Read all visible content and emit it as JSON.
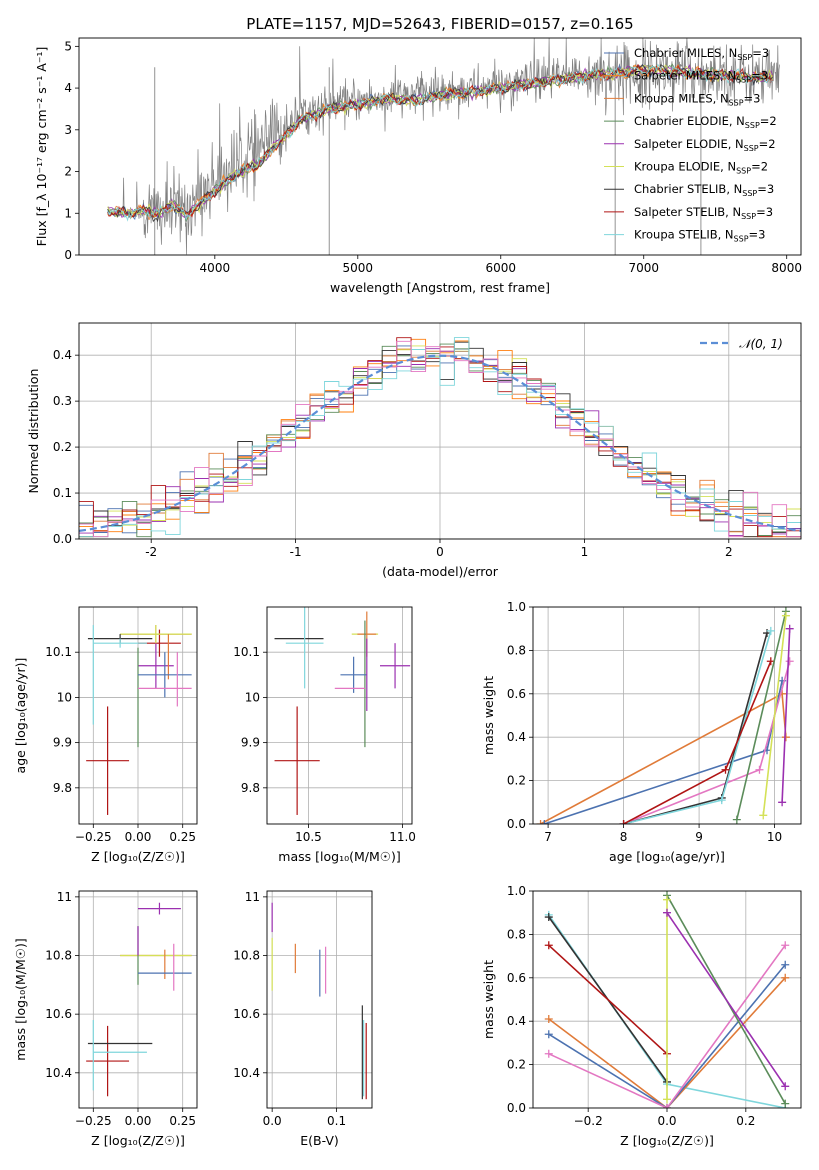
{
  "figure": {
    "title": "PLATE=1157, MJD=52643, FIBERID=0157, z=0.165"
  },
  "chart_data": [
    {
      "id": "spectrum",
      "type": "line",
      "xlabel": "wavelength [Angstrom, rest frame]",
      "ylabel": "Flux [f_λ 10⁻¹⁷ erg cm⁻² s⁻¹ A⁻¹]",
      "xlim": [
        3050,
        8100
      ],
      "ylim": [
        0,
        5.2
      ],
      "xticks": [
        4000,
        5000,
        6000,
        7000,
        8000
      ],
      "yticks": [
        0,
        1,
        2,
        3,
        4,
        5
      ],
      "grid": false,
      "legend_position": "top-right",
      "data_color": "#808080",
      "data_anchor_x": [
        3250,
        3500,
        3800,
        4000,
        4300,
        4600,
        5000,
        5500,
        6000,
        6500,
        7000,
        7500,
        8000
      ],
      "data_anchor_y": [
        1.05,
        1.0,
        1.1,
        1.8,
        2.5,
        3.4,
        3.7,
        3.9,
        4.05,
        4.3,
        4.4,
        4.4,
        4.2
      ],
      "model_x": [
        3250,
        3400,
        3500,
        3600,
        3700,
        3800,
        3900,
        4000,
        4100,
        4200,
        4300,
        4400,
        4500,
        4600,
        4700,
        4800,
        5000,
        5200,
        5400,
        5600,
        5800,
        6000,
        6200,
        6400,
        6600,
        6800,
        7000,
        7200,
        7400,
        7600,
        7800,
        7900
      ],
      "model_y": [
        1.05,
        1.0,
        1.08,
        0.98,
        1.2,
        0.95,
        1.25,
        1.55,
        1.8,
        2.05,
        2.15,
        2.55,
        2.85,
        3.25,
        3.35,
        3.5,
        3.6,
        3.75,
        3.7,
        3.85,
        3.9,
        4.0,
        4.1,
        4.2,
        4.3,
        4.35,
        4.45,
        4.4,
        4.35,
        4.3,
        4.25,
        4.25
      ],
      "series": [
        {
          "name": "Chabrier MILES, N$_{SSP}$=3",
          "label_main": "Chabrier MILES, N",
          "label_sub": "SSP",
          "label_tail": "=3",
          "color": "#4c72b0"
        },
        {
          "name": "Salpeter MILES, N$_{SSP}$=3",
          "label_main": "Salpeter MILES, N",
          "label_sub": "SSP",
          "label_tail": "=3",
          "color": "#ff7f0e"
        },
        {
          "name": "Kroupa MILES, N$_{SSP}$=3",
          "label_main": "Kroupa MILES, N",
          "label_sub": "SSP",
          "label_tail": "=3",
          "color": "#e07b39"
        },
        {
          "name": "Chabrier ELODIE, N$_{SSP}$=2",
          "label_main": "Chabrier ELODIE, N",
          "label_sub": "SSP",
          "label_tail": "=2",
          "color": "#5b8c5a"
        },
        {
          "name": "Salpeter ELODIE, N$_{SSP}$=2",
          "label_main": "Salpeter ELODIE, N",
          "label_sub": "SSP",
          "label_tail": "=2",
          "color": "#9b30b0"
        },
        {
          "name": "Kroupa ELODIE, N$_{SSP}$=2",
          "label_main": "Kroupa ELODIE, N",
          "label_sub": "SSP",
          "label_tail": "=2",
          "color": "#d4e157"
        },
        {
          "name": "Chabrier STELIB, N$_{SSP}$=3",
          "label_main": "Chabrier STELIB, N",
          "label_sub": "SSP",
          "label_tail": "=3",
          "color": "#333333"
        },
        {
          "name": "Salpeter STELIB, N$_{SSP}$=3",
          "label_main": "Salpeter STELIB, N",
          "label_sub": "SSP",
          "label_tail": "=3",
          "color": "#b01515"
        },
        {
          "name": "Kroupa STELIB, N$_{SSP}$=3",
          "label_main": "Kroupa STELIB, N",
          "label_sub": "SSP",
          "label_tail": "=3",
          "color": "#7fd6dc"
        }
      ]
    },
    {
      "id": "residuals",
      "type": "histogram",
      "xlabel": "(data-model)/error",
      "ylabel": "Normed distribution",
      "xlim": [
        -2.5,
        2.5
      ],
      "ylim": [
        0,
        0.47
      ],
      "xticks": [
        -2,
        -1,
        0,
        1,
        2
      ],
      "yticks": [
        0.0,
        0.1,
        0.2,
        0.3,
        0.4
      ],
      "grid": true,
      "legend_position": "top-right",
      "bin_width": 0.1,
      "normal_label": "𝒩(0, 1)",
      "normal_color": "#5b8ed6",
      "series_colors": [
        "#4c72b0",
        "#ff7f0e",
        "#e07b39",
        "#5b8c5a",
        "#9b30b0",
        "#d4e157",
        "#333333",
        "#b01515",
        "#7fd6dc",
        "#e377c2"
      ]
    },
    {
      "id": "age-vs-Z",
      "type": "scatter",
      "xlabel": "Z [log₁₀(Z/Z☉)]",
      "ylabel": "age  [log₁₀(age/yr)]",
      "xlim": [
        -0.33,
        0.33
      ],
      "ylim": [
        9.72,
        10.2
      ],
      "xticks": [
        -0.25,
        0.0,
        0.25
      ],
      "xtick_labels": [
        "−0.25",
        "0.00",
        "0.25"
      ],
      "yticks": [
        9.8,
        9.9,
        10.0,
        10.1
      ],
      "grid": true,
      "points": [
        {
          "x": 0.12,
          "y": 10.12,
          "xerr": 0.12,
          "yerr": 0.03,
          "color": "#b01515"
        },
        {
          "x": -0.17,
          "y": 9.86,
          "xerr": 0.12,
          "yerr": 0.12,
          "color": "#b01515"
        },
        {
          "x": 0.1,
          "y": 10.07,
          "xerr": 0.1,
          "yerr": 0.05,
          "color": "#9b30b0"
        },
        {
          "x": 0.1,
          "y": 10.14,
          "xerr": 0.2,
          "yerr": 0.02,
          "color": "#e07b39"
        },
        {
          "x": 0.1,
          "y": 10.14,
          "xerr": 0.2,
          "yerr": 0.02,
          "color": "#d4e157"
        },
        {
          "x": -0.1,
          "y": 10.13,
          "xerr": 0.18,
          "yerr": 0.01,
          "color": "#333333"
        },
        {
          "x": -0.1,
          "y": 10.12,
          "xerr": 0.15,
          "yerr": 0.01,
          "color": "#7fd6dc"
        },
        {
          "x": -0.25,
          "y": 10.05,
          "xerr": 0.0,
          "yerr": 0.11,
          "color": "#7fd6dc"
        },
        {
          "x": 0.0,
          "y": 10.0,
          "xerr": 0.0,
          "yerr": 0.11,
          "color": "#5b8c5a"
        },
        {
          "x": 0.17,
          "y": 10.09,
          "xerr": 0.0,
          "yerr": 0.05,
          "color": "#e07b39"
        },
        {
          "x": 0.15,
          "y": 10.05,
          "xerr": 0.15,
          "yerr": 0.05,
          "color": "#4c72b0"
        },
        {
          "x": 0.15,
          "y": 10.02,
          "xerr": 0.15,
          "yerr": 0.0,
          "color": "#e377c2"
        },
        {
          "x": 0.22,
          "y": 10.04,
          "xerr": 0.0,
          "yerr": 0.06,
          "color": "#e377c2"
        }
      ]
    },
    {
      "id": "age-vs-mass",
      "type": "scatter",
      "xlabel": "mass [log₁₀(M/M☉)]",
      "ylabel": "",
      "xlim": [
        10.28,
        11.05
      ],
      "ylim": [
        9.72,
        10.2
      ],
      "xticks": [
        10.5,
        11.0
      ],
      "xtick_labels": [
        "10.5",
        "11.0"
      ],
      "yticks": [
        9.8,
        9.9,
        10.0,
        10.1
      ],
      "grid": true,
      "points": [
        {
          "x": 10.44,
          "y": 9.86,
          "xerr": 0.12,
          "yerr": 0.12,
          "color": "#b01515"
        },
        {
          "x": 10.45,
          "y": 10.13,
          "xerr": 0.13,
          "yerr": 0.0,
          "color": "#333333"
        },
        {
          "x": 10.48,
          "y": 10.12,
          "xerr": 0.1,
          "yerr": 0.1,
          "color": "#7fd6dc"
        },
        {
          "x": 10.8,
          "y": 10.14,
          "xerr": 0.07,
          "yerr": 0.0,
          "color": "#d4e157"
        },
        {
          "x": 10.81,
          "y": 10.14,
          "xerr": 0.05,
          "yerr": 0.05,
          "color": "#e07b39"
        },
        {
          "x": 10.8,
          "y": 10.03,
          "xerr": 0.0,
          "yerr": 0.14,
          "color": "#5b8c5a"
        },
        {
          "x": 10.96,
          "y": 10.07,
          "xerr": 0.08,
          "yerr": 0.05,
          "color": "#9b30b0"
        },
        {
          "x": 10.74,
          "y": 10.05,
          "xerr": 0.07,
          "yerr": 0.04,
          "color": "#4c72b0"
        },
        {
          "x": 10.72,
          "y": 10.02,
          "xerr": 0.08,
          "yerr": 0.0,
          "color": "#e377c2"
        },
        {
          "x": 10.81,
          "y": 10.05,
          "xerr": 0.0,
          "yerr": 0.08,
          "color": "#9b30b0"
        }
      ]
    },
    {
      "id": "mass-weight-vs-age",
      "type": "line",
      "xlabel": "age  [log₁₀(age/yr)]",
      "ylabel": "mass weight",
      "xlim": [
        6.8,
        10.35
      ],
      "ylim": [
        0,
        1.0
      ],
      "xticks": [
        7,
        8,
        9,
        10
      ],
      "yticks": [
        0.0,
        0.2,
        0.4,
        0.6,
        0.8,
        1.0
      ],
      "grid": true,
      "series": [
        {
          "x": [
            6.9,
            10.1,
            10.15
          ],
          "y": [
            0.0,
            0.6,
            0.4
          ],
          "color": "#e07b39"
        },
        {
          "x": [
            6.95,
            9.9,
            10.1
          ],
          "y": [
            0.0,
            0.34,
            0.66
          ],
          "color": "#4c72b0"
        },
        {
          "x": [
            8.0,
            9.8,
            10.2
          ],
          "y": [
            0.0,
            0.25,
            0.75
          ],
          "color": "#e377c2"
        },
        {
          "x": [
            8.0,
            9.3,
            9.9
          ],
          "y": [
            0.0,
            0.12,
            0.88
          ],
          "color": "#333333"
        },
        {
          "x": [
            8.0,
            9.3,
            9.95
          ],
          "y": [
            0.0,
            0.11,
            0.89
          ],
          "color": "#7fd6dc"
        },
        {
          "x": [
            8.0,
            9.35,
            9.95
          ],
          "y": [
            0.0,
            0.25,
            0.75
          ],
          "color": "#b01515"
        },
        {
          "x": [
            9.5,
            10.15
          ],
          "y": [
            0.02,
            0.98
          ],
          "color": "#5b8c5a"
        },
        {
          "x": [
            9.85,
            10.15
          ],
          "y": [
            0.04,
            0.96
          ],
          "color": "#d4e157"
        },
        {
          "x": [
            10.1,
            10.2
          ],
          "y": [
            0.1,
            0.9
          ],
          "color": "#9b30b0"
        }
      ]
    },
    {
      "id": "mass-vs-Z",
      "type": "scatter",
      "xlabel": "Z [log₁₀(Z/Z☉)]",
      "ylabel": "mass [log₁₀(M/M☉)]",
      "xlim": [
        -0.33,
        0.33
      ],
      "ylim": [
        10.28,
        11.02
      ],
      "xticks": [
        -0.25,
        0.0,
        0.25
      ],
      "xtick_labels": [
        "−0.25",
        "0.00",
        "0.25"
      ],
      "yticks": [
        10.4,
        10.6,
        10.8,
        11.0
      ],
      "grid": true,
      "points": [
        {
          "x": 0.12,
          "y": 10.96,
          "xerr": 0.12,
          "yerr": 0.02,
          "color": "#9b30b0"
        },
        {
          "x": -0.17,
          "y": 10.44,
          "xerr": 0.12,
          "yerr": 0.12,
          "color": "#b01515"
        },
        {
          "x": -0.1,
          "y": 10.5,
          "xerr": 0.18,
          "yerr": 0.0,
          "color": "#333333"
        },
        {
          "x": -0.1,
          "y": 10.47,
          "xerr": 0.15,
          "yerr": 0.0,
          "color": "#7fd6dc"
        },
        {
          "x": -0.25,
          "y": 10.46,
          "xerr": 0.0,
          "yerr": 0.12,
          "color": "#7fd6dc"
        },
        {
          "x": 0.1,
          "y": 10.8,
          "xerr": 0.2,
          "yerr": 0.0,
          "color": "#e07b39"
        },
        {
          "x": 0.1,
          "y": 10.8,
          "xerr": 0.2,
          "yerr": 0.0,
          "color": "#d4e157"
        },
        {
          "x": 0.0,
          "y": 10.8,
          "xerr": 0.0,
          "yerr": 0.1,
          "color": "#5b8c5a"
        },
        {
          "x": 0.15,
          "y": 10.77,
          "xerr": 0.0,
          "yerr": 0.05,
          "color": "#e07b39"
        },
        {
          "x": 0.15,
          "y": 10.74,
          "xerr": 0.15,
          "yerr": 0.0,
          "color": "#4c72b0"
        },
        {
          "x": 0.2,
          "y": 10.76,
          "xerr": 0.0,
          "yerr": 0.08,
          "color": "#e377c2"
        },
        {
          "x": 0.0,
          "y": 10.85,
          "xerr": 0.0,
          "yerr": 0.05,
          "color": "#9b30b0"
        }
      ]
    },
    {
      "id": "mass-vs-ebv",
      "type": "scatter",
      "xlabel": "E(B-V)",
      "ylabel": "",
      "xlim": [
        -0.008,
        0.155
      ],
      "ylim": [
        10.28,
        11.02
      ],
      "xticks": [
        0.0,
        0.1
      ],
      "xtick_labels": [
        "0.0",
        "0.1"
      ],
      "yticks": [
        10.4,
        10.6,
        10.8,
        11.0
      ],
      "grid": true,
      "points": [
        {
          "x": 0.0,
          "y": 10.93,
          "xerr": 0.0,
          "yerr": 0.05,
          "color": "#9b30b0"
        },
        {
          "x": 0.0,
          "y": 10.77,
          "xerr": 0.0,
          "yerr": 0.09,
          "color": "#d4e157"
        },
        {
          "x": 0.036,
          "y": 10.79,
          "xerr": 0.0,
          "yerr": 0.05,
          "color": "#e07b39"
        },
        {
          "x": 0.074,
          "y": 10.74,
          "xerr": 0.0,
          "yerr": 0.08,
          "color": "#4c72b0"
        },
        {
          "x": 0.083,
          "y": 10.75,
          "xerr": 0.0,
          "yerr": 0.08,
          "color": "#e377c2"
        },
        {
          "x": 0.14,
          "y": 10.47,
          "xerr": 0.0,
          "yerr": 0.16,
          "color": "#333333"
        },
        {
          "x": 0.142,
          "y": 10.45,
          "xerr": 0.0,
          "yerr": 0.13,
          "color": "#7fd6dc"
        },
        {
          "x": 0.146,
          "y": 10.44,
          "xerr": 0.0,
          "yerr": 0.13,
          "color": "#b01515"
        }
      ]
    },
    {
      "id": "mass-weight-vs-Z",
      "type": "line",
      "xlabel": "Z [log₁₀(Z/Z☉)]",
      "ylabel": "mass weight",
      "xlim": [
        -0.34,
        0.34
      ],
      "ylim": [
        0,
        1.0
      ],
      "xticks": [
        -0.2,
        0.0,
        0.2
      ],
      "xtick_labels": [
        "−0.2",
        "0.0",
        "0.2"
      ],
      "yticks": [
        0.0,
        0.2,
        0.4,
        0.6,
        0.8,
        1.0
      ],
      "grid": true,
      "series": [
        {
          "x": [
            -0.3,
            0.0,
            0.3
          ],
          "y": [
            0.89,
            0.11,
            0.0
          ],
          "color": "#7fd6dc"
        },
        {
          "x": [
            -0.3,
            0.0
          ],
          "y": [
            0.88,
            0.12
          ],
          "color": "#333333"
        },
        {
          "x": [
            -0.3,
            0.0
          ],
          "y": [
            0.75,
            0.25
          ],
          "color": "#b01515"
        },
        {
          "x": [
            -0.3,
            0.0,
            0.3
          ],
          "y": [
            0.41,
            0.0,
            0.6
          ],
          "color": "#e07b39"
        },
        {
          "x": [
            -0.3,
            0.0,
            0.3
          ],
          "y": [
            0.34,
            0.0,
            0.66
          ],
          "color": "#4c72b0"
        },
        {
          "x": [
            -0.3,
            0.0,
            0.3
          ],
          "y": [
            0.25,
            0.0,
            0.75
          ],
          "color": "#e377c2"
        },
        {
          "x": [
            0.0,
            0.3
          ],
          "y": [
            0.98,
            0.02
          ],
          "color": "#5b8c5a"
        },
        {
          "x": [
            0.0,
            0.0
          ],
          "y": [
            0.96,
            0.04
          ],
          "color": "#d4e157"
        },
        {
          "x": [
            0.0,
            0.3
          ],
          "y": [
            0.9,
            0.1
          ],
          "color": "#9b30b0"
        }
      ]
    }
  ]
}
